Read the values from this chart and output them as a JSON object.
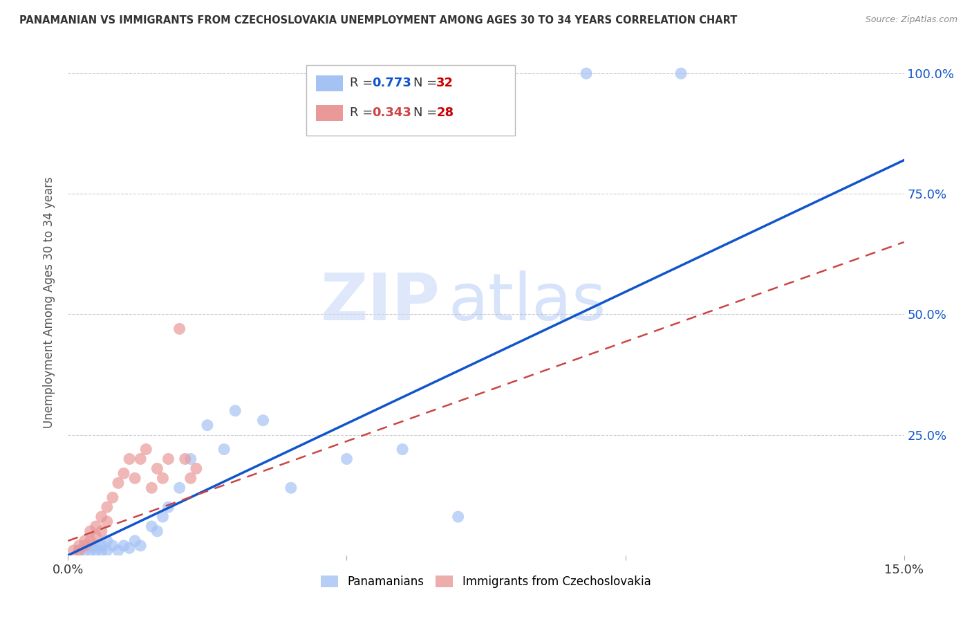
{
  "title": "PANAMANIAN VS IMMIGRANTS FROM CZECHOSLOVAKIA UNEMPLOYMENT AMONG AGES 30 TO 34 YEARS CORRELATION CHART",
  "source": "Source: ZipAtlas.com",
  "ylabel": "Unemployment Among Ages 30 to 34 years",
  "xlim": [
    0.0,
    0.15
  ],
  "ylim": [
    0.0,
    1.05
  ],
  "xticks": [
    0.0,
    0.05,
    0.1,
    0.15
  ],
  "xticklabels": [
    "0.0%",
    "",
    "",
    "15.0%"
  ],
  "yticks": [
    0.25,
    0.5,
    0.75,
    1.0
  ],
  "yticklabels": [
    "25.0%",
    "50.0%",
    "75.0%",
    "100.0%"
  ],
  "blue_R": 0.773,
  "blue_N": 32,
  "pink_R": 0.343,
  "pink_N": 28,
  "blue_color": "#a4c2f4",
  "pink_color": "#ea9999",
  "blue_scatter_x": [
    0.002,
    0.003,
    0.004,
    0.004,
    0.005,
    0.005,
    0.006,
    0.006,
    0.007,
    0.007,
    0.008,
    0.009,
    0.01,
    0.011,
    0.012,
    0.013,
    0.015,
    0.016,
    0.017,
    0.018,
    0.02,
    0.022,
    0.025,
    0.028,
    0.03,
    0.035,
    0.04,
    0.05,
    0.06,
    0.07,
    0.093,
    0.11
  ],
  "blue_scatter_y": [
    0.01,
    0.01,
    0.02,
    0.01,
    0.01,
    0.02,
    0.01,
    0.02,
    0.03,
    0.01,
    0.02,
    0.01,
    0.02,
    0.015,
    0.03,
    0.02,
    0.06,
    0.05,
    0.08,
    0.1,
    0.14,
    0.2,
    0.27,
    0.22,
    0.3,
    0.28,
    0.14,
    0.2,
    0.22,
    0.08,
    1.0,
    1.0
  ],
  "pink_scatter_x": [
    0.001,
    0.002,
    0.002,
    0.003,
    0.003,
    0.004,
    0.004,
    0.005,
    0.005,
    0.006,
    0.006,
    0.007,
    0.007,
    0.008,
    0.009,
    0.01,
    0.011,
    0.012,
    0.013,
    0.014,
    0.015,
    0.016,
    0.017,
    0.018,
    0.02,
    0.021,
    0.022,
    0.023
  ],
  "pink_scatter_y": [
    0.01,
    0.02,
    0.01,
    0.03,
    0.02,
    0.05,
    0.03,
    0.06,
    0.04,
    0.08,
    0.05,
    0.1,
    0.07,
    0.12,
    0.15,
    0.17,
    0.2,
    0.16,
    0.2,
    0.22,
    0.14,
    0.18,
    0.16,
    0.2,
    0.47,
    0.2,
    0.16,
    0.18
  ],
  "blue_line_color": "#1155cc",
  "pink_line_color": "#cc4444",
  "watermark_zip": "ZIP",
  "watermark_atlas": "atlas",
  "background_color": "#ffffff",
  "grid_color": "#cccccc"
}
